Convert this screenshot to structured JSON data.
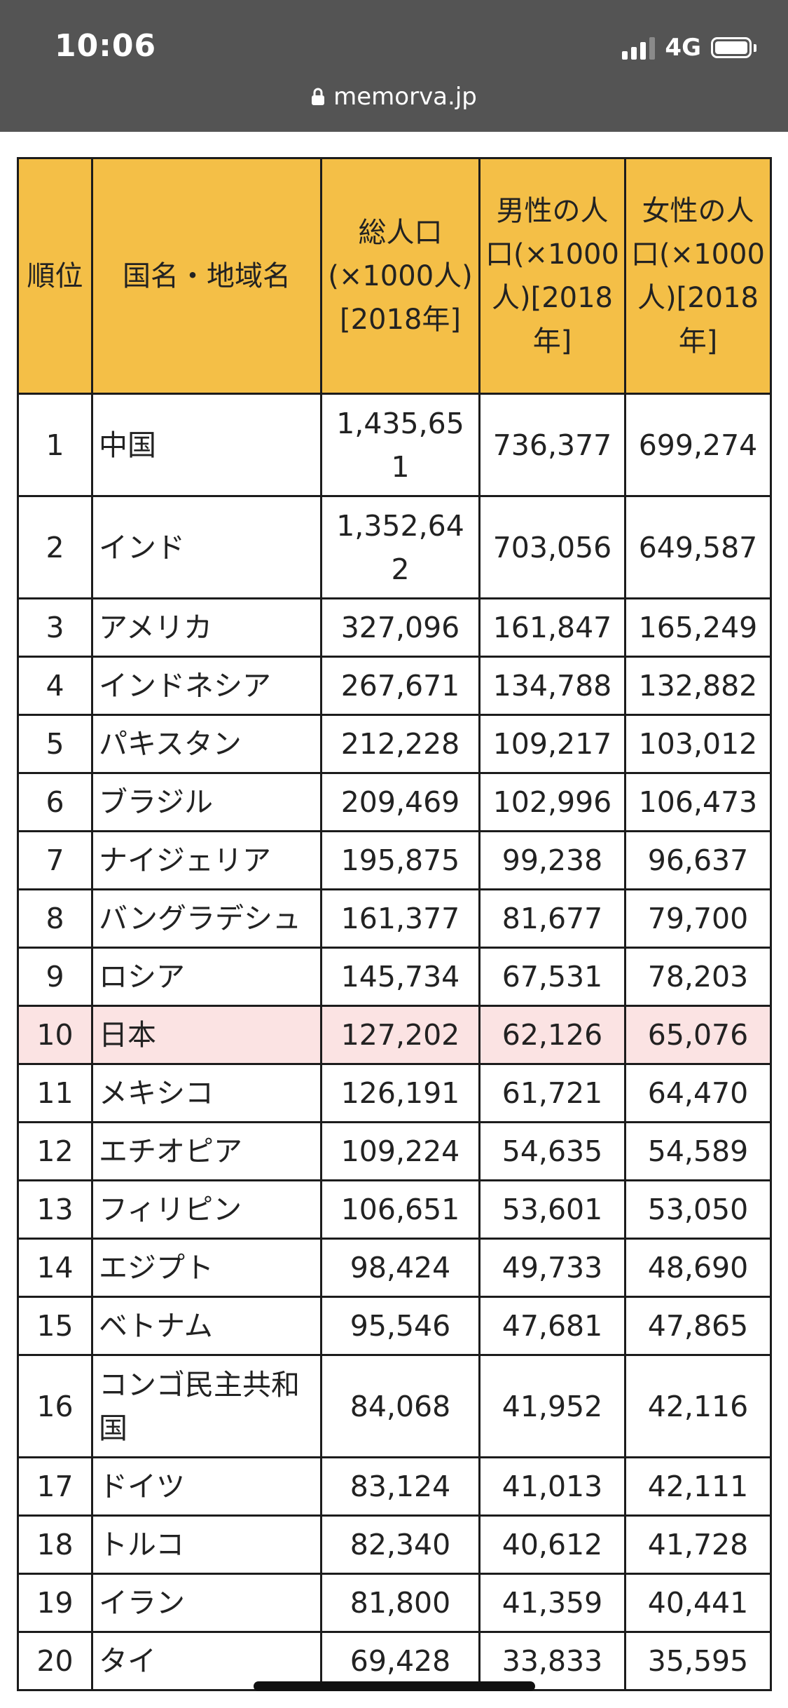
{
  "status_bar": {
    "time": "10:06",
    "network": "4G"
  },
  "browser": {
    "url": "memorva.jp"
  },
  "table": {
    "headers": {
      "rank": "順位",
      "name": "国名・地域名",
      "total": "総人口(×1000人)[2018年]",
      "male": "男性の人口(×1000人)[2018年]",
      "female": "女性の人口(×1000人)[2018年]"
    },
    "rows": [
      {
        "rank": "1",
        "name": "中国",
        "total": "1,435,651",
        "male": "736,377",
        "female": "699,274"
      },
      {
        "rank": "2",
        "name": "インド",
        "total": "1,352,642",
        "male": "703,056",
        "female": "649,587"
      },
      {
        "rank": "3",
        "name": "アメリカ",
        "total": "327,096",
        "male": "161,847",
        "female": "165,249"
      },
      {
        "rank": "4",
        "name": "インドネシア",
        "total": "267,671",
        "male": "134,788",
        "female": "132,882"
      },
      {
        "rank": "5",
        "name": "パキスタン",
        "total": "212,228",
        "male": "109,217",
        "female": "103,012"
      },
      {
        "rank": "6",
        "name": "ブラジル",
        "total": "209,469",
        "male": "102,996",
        "female": "106,473"
      },
      {
        "rank": "7",
        "name": "ナイジェリア",
        "total": "195,875",
        "male": "99,238",
        "female": "96,637"
      },
      {
        "rank": "8",
        "name": "バングラデシュ",
        "total": "161,377",
        "male": "81,677",
        "female": "79,700"
      },
      {
        "rank": "9",
        "name": "ロシア",
        "total": "145,734",
        "male": "67,531",
        "female": "78,203"
      },
      {
        "rank": "10",
        "name": "日本",
        "total": "127,202",
        "male": "62,126",
        "female": "65,076",
        "highlight": true
      },
      {
        "rank": "11",
        "name": "メキシコ",
        "total": "126,191",
        "male": "61,721",
        "female": "64,470"
      },
      {
        "rank": "12",
        "name": "エチオピア",
        "total": "109,224",
        "male": "54,635",
        "female": "54,589"
      },
      {
        "rank": "13",
        "name": "フィリピン",
        "total": "106,651",
        "male": "53,601",
        "female": "53,050"
      },
      {
        "rank": "14",
        "name": "エジプト",
        "total": "98,424",
        "male": "49,733",
        "female": "48,690"
      },
      {
        "rank": "15",
        "name": "ベトナム",
        "total": "95,546",
        "male": "47,681",
        "female": "47,865"
      },
      {
        "rank": "16",
        "name": "コンゴ民主共和国",
        "total": "84,068",
        "male": "41,952",
        "female": "42,116"
      },
      {
        "rank": "17",
        "name": "ドイツ",
        "total": "83,124",
        "male": "41,013",
        "female": "42,111"
      },
      {
        "rank": "18",
        "name": "トルコ",
        "total": "82,340",
        "male": "40,612",
        "female": "41,728"
      },
      {
        "rank": "19",
        "name": "イラン",
        "total": "81,800",
        "male": "41,359",
        "female": "40,441"
      },
      {
        "rank": "20",
        "name": "タイ",
        "total": "69,428",
        "male": "33,833",
        "female": "35,595"
      }
    ]
  },
  "colors": {
    "header_bg": "#f4bf47",
    "highlight_bg": "#fbe3e3",
    "browser_bg": "#545454"
  }
}
